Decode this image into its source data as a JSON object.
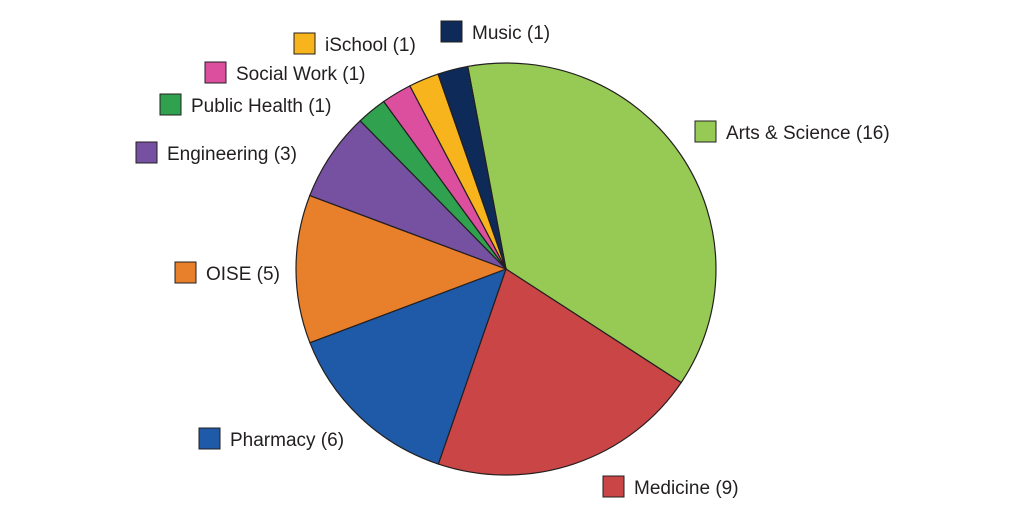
{
  "chart_data": {
    "type": "pie",
    "title": "",
    "start": "12 o'clock minus a small offset, clockwise",
    "slices": [
      {
        "label": "Arts & Science (16)",
        "value": 16,
        "color": "#97ca54"
      },
      {
        "label": "Medicine (9)",
        "value": 9,
        "color": "#c94546"
      },
      {
        "label": "Pharmacy (6)",
        "value": 6,
        "color": "#1e5aa8"
      },
      {
        "label": "OISE (5)",
        "value": 5,
        "color": "#e77f2b"
      },
      {
        "label": "Engineering (3)",
        "value": 3,
        "color": "#7651a2"
      },
      {
        "label": "Public Health (1)",
        "value": 1,
        "color": "#30a14e"
      },
      {
        "label": "Social Work (1)",
        "value": 1,
        "color": "#dc4f9e"
      },
      {
        "label": "iSchool (1)",
        "value": 1,
        "color": "#f7b41c"
      },
      {
        "label": "Music (1)",
        "value": 1,
        "color": "#0e2a58"
      }
    ]
  }
}
